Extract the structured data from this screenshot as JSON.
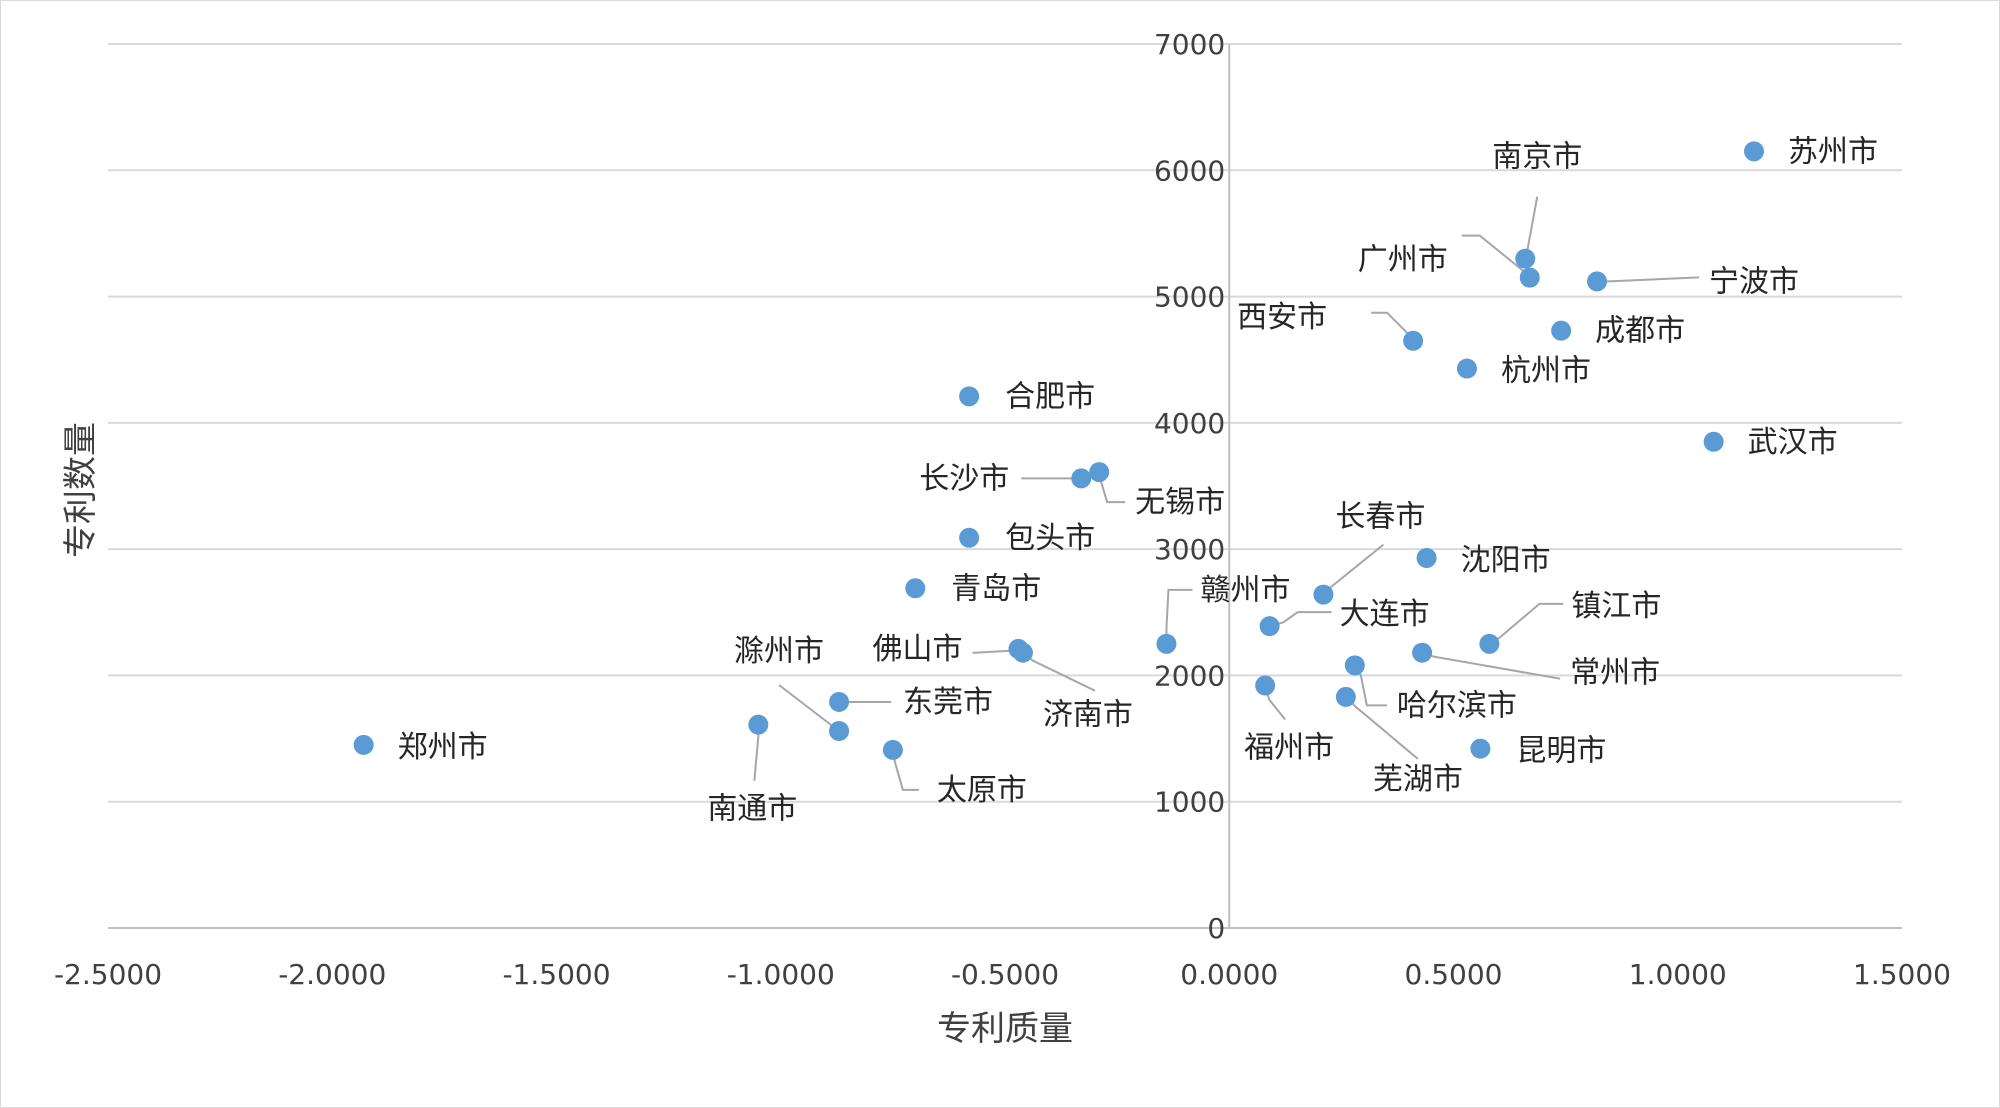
{
  "chart_data": {
    "type": "scatter",
    "title": "",
    "xlabel": "专利质量",
    "ylabel": "专利数量",
    "xlim": [
      -2.5,
      1.5
    ],
    "ylim": [
      0,
      7000
    ],
    "x_ticks": [
      "-2.5000",
      "-2.0000",
      "-1.5000",
      "-1.0000",
      "-0.5000",
      "0.0000",
      "0.5000",
      "1.0000",
      "1.5000"
    ],
    "y_ticks": [
      "0",
      "1000",
      "2000",
      "3000",
      "4000",
      "5000",
      "6000",
      "7000"
    ],
    "grid": "horizontal",
    "marker_color": "#5b9bd5",
    "points": [
      {
        "label": "苏州市",
        "x": 1.17,
        "y": 6150
      },
      {
        "label": "南京市",
        "x": 0.66,
        "y": 5300
      },
      {
        "label": "广州市",
        "x": 0.67,
        "y": 5150
      },
      {
        "label": "宁波市",
        "x": 0.82,
        "y": 5120
      },
      {
        "label": "西安市",
        "x": 0.41,
        "y": 4650
      },
      {
        "label": "成都市",
        "x": 0.74,
        "y": 4730
      },
      {
        "label": "杭州市",
        "x": 0.53,
        "y": 4430
      },
      {
        "label": "合肥市",
        "x": -0.58,
        "y": 4210
      },
      {
        "label": "武汉市",
        "x": 1.08,
        "y": 3850
      },
      {
        "label": "长沙市",
        "x": -0.33,
        "y": 3560
      },
      {
        "label": "无锡市",
        "x": -0.29,
        "y": 3610
      },
      {
        "label": "包头市",
        "x": -0.58,
        "y": 3090
      },
      {
        "label": "长春市",
        "x": 0.21,
        "y": 2640
      },
      {
        "label": "沈阳市",
        "x": 0.44,
        "y": 2930
      },
      {
        "label": "青岛市",
        "x": -0.7,
        "y": 2690
      },
      {
        "label": "赣州市",
        "x": -0.14,
        "y": 2250
      },
      {
        "label": "大连市",
        "x": 0.09,
        "y": 2390
      },
      {
        "label": "镇江市",
        "x": 0.58,
        "y": 2250
      },
      {
        "label": "佛山市",
        "x": -0.47,
        "y": 2210
      },
      {
        "label": "济南市",
        "x": -0.46,
        "y": 2180
      },
      {
        "label": "常州市",
        "x": 0.43,
        "y": 2180
      },
      {
        "label": "滁州市",
        "x": -0.87,
        "y": 1560
      },
      {
        "label": "东莞市",
        "x": -0.87,
        "y": 1790
      },
      {
        "label": "福州市",
        "x": 0.08,
        "y": 1920
      },
      {
        "label": "哈尔滨市",
        "x": 0.28,
        "y": 2080
      },
      {
        "label": "芜湖市",
        "x": 0.26,
        "y": 1830
      },
      {
        "label": "郑州市",
        "x": -1.93,
        "y": 1450
      },
      {
        "label": "南通市",
        "x": -1.05,
        "y": 1610
      },
      {
        "label": "太原市",
        "x": -0.75,
        "y": 1410
      },
      {
        "label": "昆明市",
        "x": 0.56,
        "y": 1420
      }
    ]
  }
}
